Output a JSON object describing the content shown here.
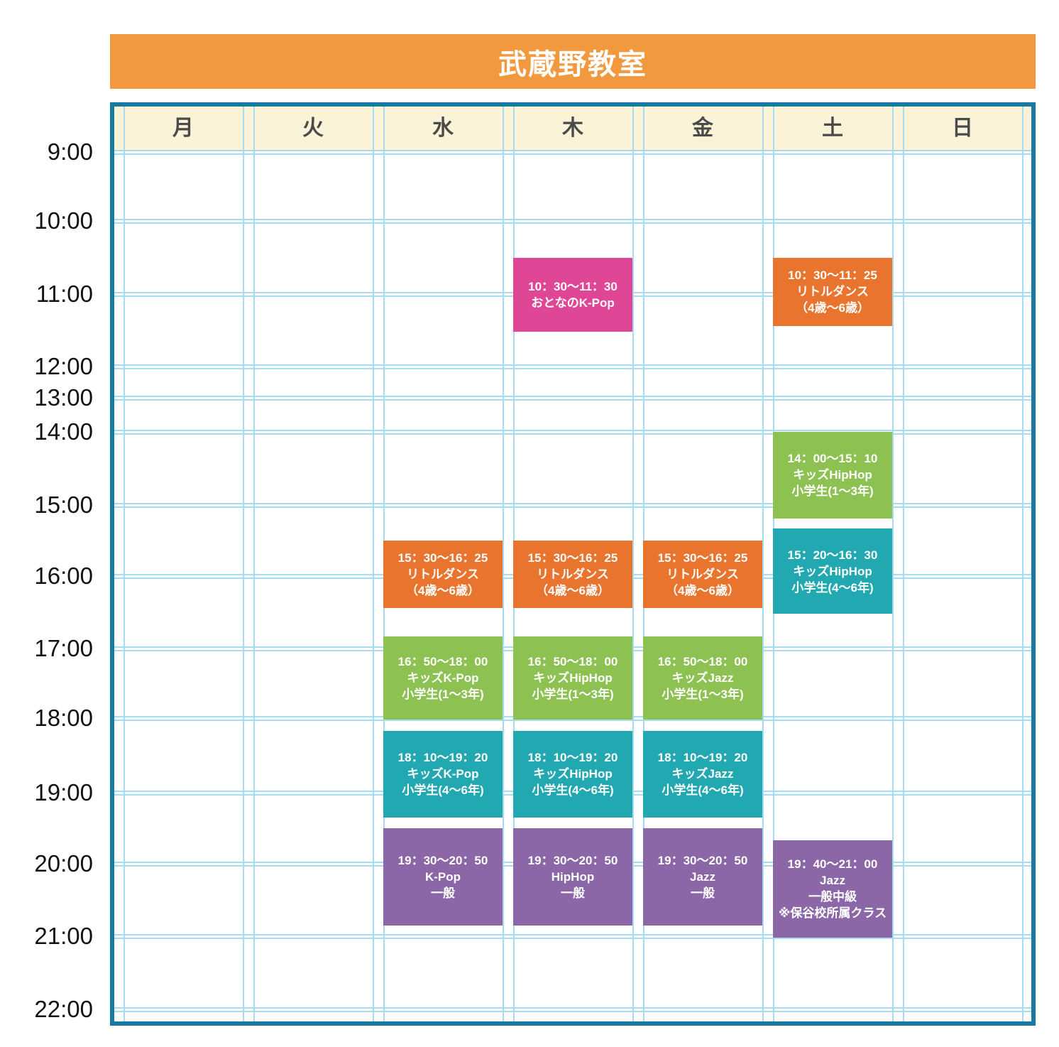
{
  "title": "武蔵野教室",
  "colors": {
    "banner": "#F2993F",
    "header_bg": "#FAF3D7",
    "grid_line": "#A6DBF4",
    "border": "#1879A3",
    "day_text": "#4A4A4A",
    "time_text": "#121212"
  },
  "chart_data": {
    "type": "table",
    "title": "武蔵野教室",
    "columns": [
      "月",
      "火",
      "水",
      "木",
      "金",
      "土",
      "日"
    ],
    "time_axis": [
      "9:00",
      "10:00",
      "11:00",
      "12:00",
      "13:00",
      "14:00",
      "15:00",
      "16:00",
      "17:00",
      "18:00",
      "19:00",
      "20:00",
      "21:00",
      "22:00"
    ],
    "event_colors": {
      "pink": "#DF4796",
      "orange": "#E9742E",
      "green": "#8DC253",
      "teal": "#22A8B1",
      "purple": "#8B67A7"
    },
    "events": [
      {
        "day": "木",
        "start": "10:30",
        "end": "11:30",
        "color": "pink",
        "lines": [
          "10：30～11：30",
          "おとなのK-Pop"
        ]
      },
      {
        "day": "土",
        "start": "10:30",
        "end": "11:25",
        "color": "orange",
        "lines": [
          "10：30～11：25",
          "リトルダンス",
          "（4歳～6歳）"
        ]
      },
      {
        "day": "土",
        "start": "14:00",
        "end": "15:10",
        "color": "green",
        "lines": [
          "14：00～15：10",
          "キッズHipHop",
          "小学生(1～3年)"
        ]
      },
      {
        "day": "土",
        "start": "15:20",
        "end": "16:30",
        "color": "teal",
        "lines": [
          "15：20～16：30",
          "キッズHipHop",
          "小学生(4～6年)"
        ]
      },
      {
        "day": "水",
        "start": "15:30",
        "end": "16:25",
        "color": "orange",
        "lines": [
          "15：30～16：25",
          "リトルダンス",
          "（4歳～6歳）"
        ]
      },
      {
        "day": "木",
        "start": "15:30",
        "end": "16:25",
        "color": "orange",
        "lines": [
          "15：30～16：25",
          "リトルダンス",
          "（4歳～6歳）"
        ]
      },
      {
        "day": "金",
        "start": "15:30",
        "end": "16:25",
        "color": "orange",
        "lines": [
          "15：30～16：25",
          "リトルダンス",
          "（4歳～6歳）"
        ]
      },
      {
        "day": "水",
        "start": "16:50",
        "end": "18:00",
        "color": "green",
        "lines": [
          "16：50～18：00",
          "キッズK-Pop",
          "小学生(1～3年)"
        ]
      },
      {
        "day": "木",
        "start": "16:50",
        "end": "18:00",
        "color": "green",
        "lines": [
          "16：50～18：00",
          "キッズHipHop",
          "小学生(1～3年)"
        ]
      },
      {
        "day": "金",
        "start": "16:50",
        "end": "18:00",
        "color": "green",
        "lines": [
          "16：50～18：00",
          "キッズJazz",
          "小学生(1～3年)"
        ]
      },
      {
        "day": "水",
        "start": "18:10",
        "end": "19:20",
        "color": "teal",
        "lines": [
          "18：10～19：20",
          "キッズK-Pop",
          "小学生(4～6年)"
        ]
      },
      {
        "day": "木",
        "start": "18:10",
        "end": "19:20",
        "color": "teal",
        "lines": [
          "18：10～19：20",
          "キッズHipHop",
          "小学生(4～6年)"
        ]
      },
      {
        "day": "金",
        "start": "18:10",
        "end": "19:20",
        "color": "teal",
        "lines": [
          "18：10～19：20",
          "キッズJazz",
          "小学生(4～6年)"
        ]
      },
      {
        "day": "水",
        "start": "19:30",
        "end": "20:50",
        "color": "purple",
        "lines": [
          "19：30～20：50",
          "K-Pop",
          "一般"
        ]
      },
      {
        "day": "木",
        "start": "19:30",
        "end": "20:50",
        "color": "purple",
        "lines": [
          "19：30～20：50",
          "HipHop",
          "一般"
        ]
      },
      {
        "day": "金",
        "start": "19:30",
        "end": "20:50",
        "color": "purple",
        "lines": [
          "19：30～20：50",
          "Jazz",
          "一般"
        ]
      },
      {
        "day": "土",
        "start": "19:40",
        "end": "21:00",
        "color": "purple",
        "lines": [
          "19：40～21：00",
          "Jazz",
          "一般中級",
          "※保谷校所属クラス"
        ]
      }
    ]
  }
}
